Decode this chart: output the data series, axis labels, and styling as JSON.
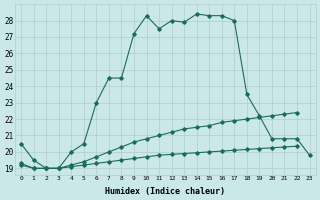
{
  "xlabel": "Humidex (Indice chaleur)",
  "background_color": "#cbe8e8",
  "grid_color": "#b0cccc",
  "line_color": "#1a6b5a",
  "xlim": [
    -0.5,
    23.5
  ],
  "ylim": [
    18.6,
    29.0
  ],
  "xticks": [
    0,
    1,
    2,
    3,
    4,
    5,
    6,
    7,
    8,
    9,
    10,
    11,
    12,
    13,
    14,
    15,
    16,
    17,
    18,
    19,
    20,
    21,
    22,
    23
  ],
  "yticks": [
    19,
    20,
    21,
    22,
    23,
    24,
    25,
    26,
    27,
    28
  ],
  "series1_x": [
    0,
    1,
    2,
    3,
    4,
    5,
    6,
    7,
    8,
    9,
    10,
    11,
    12,
    13,
    14,
    15,
    16,
    17,
    18,
    19,
    20,
    21,
    22,
    23
  ],
  "series1_y": [
    20.5,
    19.5,
    19.0,
    19.0,
    20.0,
    20.5,
    23.0,
    24.5,
    24.5,
    27.2,
    28.3,
    27.5,
    28.0,
    27.9,
    28.4,
    28.3,
    28.3,
    28.0,
    23.5,
    22.2,
    20.8,
    20.8,
    20.8,
    19.8
  ],
  "series2_x": [
    0,
    1,
    2,
    3,
    4,
    5,
    6,
    7,
    8,
    9,
    10,
    11,
    12,
    13,
    14,
    15,
    16,
    17,
    18,
    19,
    20,
    21,
    22
  ],
  "series2_y": [
    19.3,
    19.0,
    19.0,
    19.0,
    19.2,
    19.4,
    19.7,
    20.0,
    20.3,
    20.6,
    20.8,
    21.0,
    21.2,
    21.4,
    21.5,
    21.6,
    21.8,
    21.9,
    22.0,
    22.1,
    22.2,
    22.3,
    22.4
  ],
  "series3_x": [
    0,
    1,
    2,
    3,
    4,
    5,
    6,
    7,
    8,
    9,
    10,
    11,
    12,
    13,
    14,
    15,
    16,
    17,
    18,
    19,
    20,
    21,
    22
  ],
  "series3_y": [
    19.2,
    19.0,
    19.0,
    19.0,
    19.1,
    19.2,
    19.3,
    19.4,
    19.5,
    19.6,
    19.7,
    19.8,
    19.85,
    19.9,
    19.95,
    20.0,
    20.05,
    20.1,
    20.15,
    20.2,
    20.25,
    20.3,
    20.35
  ]
}
